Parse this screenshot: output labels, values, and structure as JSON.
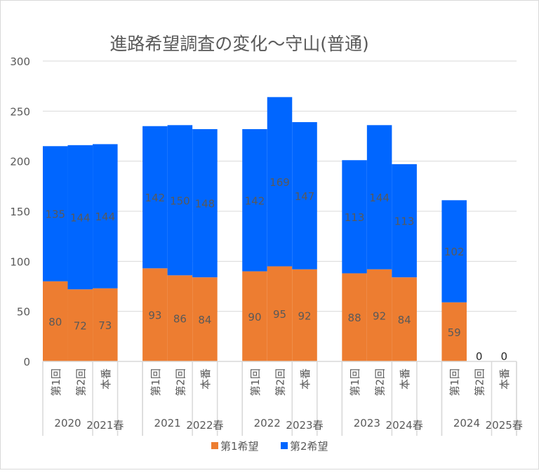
{
  "chart_data": {
    "type": "bar",
    "stacked": true,
    "title": "進路希望調査の変化～守山(普通)",
    "xlabel": "",
    "ylabel": "",
    "ylim": [
      0,
      300
    ],
    "yticks": [
      "0",
      "50",
      "100",
      "150",
      "200",
      "250",
      "300"
    ],
    "grid": true,
    "legend_position": "bottom",
    "groups": [
      {
        "outer": [
          "2020",
          "2021春"
        ],
        "categories": [
          "第1回",
          "第2回",
          "本番"
        ]
      },
      {
        "outer": [
          "2021",
          "2022春"
        ],
        "categories": [
          "第1回",
          "第2回",
          "本番"
        ]
      },
      {
        "outer": [
          "2022",
          "2023春"
        ],
        "categories": [
          "第1回",
          "第2回",
          "本番"
        ]
      },
      {
        "outer": [
          "2023",
          "2024春"
        ],
        "categories": [
          "第1回",
          "第2回",
          "本番"
        ]
      },
      {
        "outer": [
          "2024",
          "2025春"
        ],
        "categories": [
          "第1回",
          "第2回",
          "本番"
        ]
      }
    ],
    "series": [
      {
        "name": "第1希望",
        "color": "#ED7D31",
        "values": [
          [
            80,
            72,
            73
          ],
          [
            93,
            86,
            84
          ],
          [
            90,
            95,
            92
          ],
          [
            88,
            92,
            84
          ],
          [
            59,
            0,
            0
          ]
        ]
      },
      {
        "name": "第2希望",
        "color": "#0066FF",
        "values": [
          [
            135,
            144,
            144
          ],
          [
            142,
            150,
            148
          ],
          [
            142,
            169,
            147
          ],
          [
            113,
            144,
            113
          ],
          [
            102,
            0,
            0
          ]
        ]
      }
    ]
  }
}
